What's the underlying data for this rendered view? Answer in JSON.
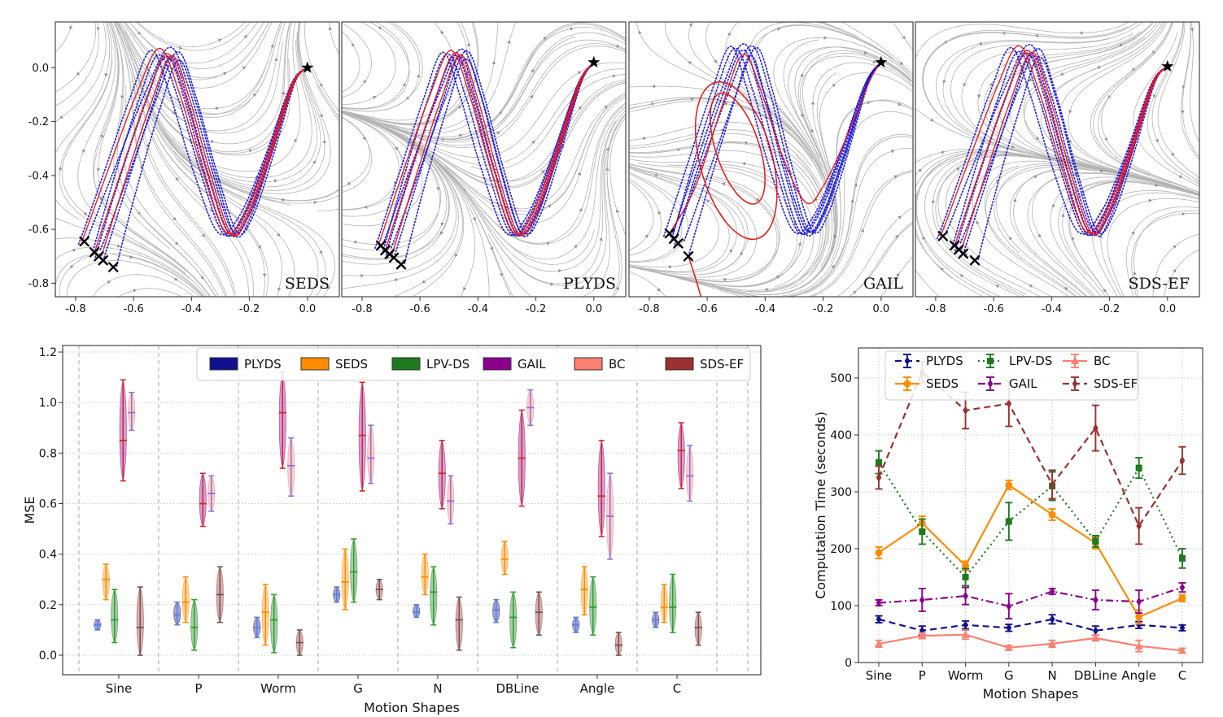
{
  "stream_row": {
    "x_tick_labels": [
      "-0.8",
      "-0.6",
      "-0.4",
      "-0.2",
      "0.0"
    ],
    "y_tick_labels": [
      "0.0",
      "-0.2",
      "-0.4",
      "-0.6",
      "-0.8"
    ],
    "x_tick_values": [
      -0.8,
      -0.6,
      -0.4,
      -0.2,
      0.0
    ],
    "y_tick_values": [
      0.0,
      -0.2,
      -0.4,
      -0.6,
      -0.8
    ],
    "demonstration_color": "#1313dc",
    "reproduction_color": "#ea1515",
    "streamline_color": "#b3b3b3",
    "marker_color": "#000000",
    "panels": [
      {
        "label": "SEDS",
        "target": [
          0.0,
          0.0
        ],
        "show_y_ticks": true,
        "has_loop": false,
        "starts": [
          [
            -0.77,
            -0.645
          ],
          [
            -0.735,
            -0.685
          ],
          [
            -0.72,
            -0.7
          ],
          [
            -0.705,
            -0.715
          ],
          [
            -0.67,
            -0.74
          ]
        ]
      },
      {
        "label": "PLYDS",
        "target": [
          0.0,
          0.02
        ],
        "show_y_ticks": false,
        "has_loop": false,
        "starts": [
          [
            -0.735,
            -0.66
          ],
          [
            -0.72,
            -0.678
          ],
          [
            -0.705,
            -0.692
          ],
          [
            -0.69,
            -0.705
          ],
          [
            -0.665,
            -0.73
          ]
        ]
      },
      {
        "label": "GAIL",
        "target": [
          0.0,
          0.02
        ],
        "show_y_ticks": false,
        "has_loop": true,
        "starts": [
          [
            -0.73,
            -0.615
          ],
          [
            -0.715,
            -0.635
          ],
          [
            -0.7,
            -0.652
          ],
          [
            -0.665,
            -0.7
          ]
        ]
      },
      {
        "label": "SDS-EF",
        "target": [
          0.0,
          0.005
        ],
        "show_y_ticks": false,
        "has_loop": false,
        "starts": [
          [
            -0.775,
            -0.625
          ],
          [
            -0.735,
            -0.66
          ],
          [
            -0.72,
            -0.675
          ],
          [
            -0.705,
            -0.69
          ],
          [
            -0.665,
            -0.715
          ]
        ]
      }
    ]
  },
  "chart_data": [
    {
      "id": "mse-violin",
      "type": "violin",
      "title": "",
      "xlabel": "Motion Shapes",
      "ylabel": "MSE",
      "categories": [
        "Sine",
        "P",
        "Worm",
        "G",
        "N",
        "DBLine",
        "Angle",
        "C"
      ],
      "yticks": [
        0.0,
        0.2,
        0.4,
        0.6,
        0.8,
        1.0,
        1.2
      ],
      "ylim": [
        -0.08,
        1.23
      ],
      "grid": true,
      "legend_position": "top",
      "series": [
        {
          "name": "PLYDS",
          "color": "#10108f",
          "whisker_color": "#5c7fd6",
          "violins": [
            [
              0.1,
              0.12,
              0.14
            ],
            [
              0.12,
              0.16,
              0.21
            ],
            [
              0.07,
              0.11,
              0.15
            ],
            [
              0.21,
              0.24,
              0.27
            ],
            [
              0.15,
              0.17,
              0.2
            ],
            [
              0.13,
              0.18,
              0.22
            ],
            [
              0.09,
              0.12,
              0.15
            ],
            [
              0.11,
              0.14,
              0.17
            ]
          ]
        },
        {
          "name": "SEDS",
          "color": "#ff8c00",
          "whisker_color": "#ff8c00",
          "violins": [
            [
              0.22,
              0.3,
              0.36
            ],
            [
              0.13,
              0.21,
              0.31
            ],
            [
              0.04,
              0.17,
              0.28
            ],
            [
              0.18,
              0.29,
              0.42
            ],
            [
              0.24,
              0.31,
              0.4
            ],
            [
              0.32,
              0.38,
              0.45
            ],
            [
              0.16,
              0.26,
              0.35
            ],
            [
              0.13,
              0.19,
              0.28
            ]
          ]
        },
        {
          "name": "LPV-DS",
          "color": "#1f7a1f",
          "whisker_color": "#2ca02c",
          "violins": [
            [
              0.05,
              0.14,
              0.26
            ],
            [
              0.02,
              0.11,
              0.22
            ],
            [
              0.01,
              0.14,
              0.24
            ],
            [
              0.21,
              0.33,
              0.46
            ],
            [
              0.12,
              0.25,
              0.35
            ],
            [
              0.03,
              0.15,
              0.25
            ],
            [
              0.08,
              0.19,
              0.31
            ],
            [
              0.09,
              0.19,
              0.32
            ]
          ]
        },
        {
          "name": "GAIL",
          "color": "#8b008b",
          "whisker_color": "#d62728",
          "violins": [
            [
              0.69,
              0.85,
              1.09
            ],
            [
              0.51,
              0.6,
              0.72
            ],
            [
              0.74,
              0.96,
              1.12
            ],
            [
              0.65,
              0.87,
              1.08
            ],
            [
              0.58,
              0.72,
              0.85
            ],
            [
              0.59,
              0.78,
              0.97
            ],
            [
              0.47,
              0.63,
              0.85
            ],
            [
              0.66,
              0.81,
              0.92
            ]
          ]
        },
        {
          "name": "BC",
          "color": "#fa8072",
          "whisker_color": "#8f6fd8",
          "violins": [
            [
              0.89,
              0.96,
              1.04
            ],
            [
              0.57,
              0.64,
              0.71
            ],
            [
              0.63,
              0.75,
              0.86
            ],
            [
              0.68,
              0.78,
              0.91
            ],
            [
              0.52,
              0.61,
              0.71
            ],
            [
              0.91,
              0.98,
              1.05
            ],
            [
              0.38,
              0.55,
              0.72
            ],
            [
              0.61,
              0.71,
              0.83
            ]
          ]
        },
        {
          "name": "SDS-EF",
          "color": "#9c2f2f",
          "whisker_color": "#6e5454",
          "violins": [
            [
              0.0,
              0.11,
              0.27
            ],
            [
              0.13,
              0.24,
              0.35
            ],
            [
              0.0,
              0.05,
              0.1
            ],
            [
              0.22,
              0.26,
              0.3
            ],
            [
              0.02,
              0.14,
              0.23
            ],
            [
              0.08,
              0.17,
              0.25
            ],
            [
              0.0,
              0.04,
              0.09
            ],
            [
              0.04,
              0.11,
              0.17
            ]
          ]
        }
      ]
    },
    {
      "id": "computation-time",
      "type": "line",
      "title": "",
      "xlabel": "Motion Shapes",
      "ylabel": "Computation Time (seconds)",
      "categories": [
        "Sine",
        "P",
        "Worm",
        "G",
        "N",
        "DBLine",
        "Angle",
        "C"
      ],
      "yticks": [
        0,
        100,
        200,
        300,
        400,
        500
      ],
      "ylim": [
        0,
        553
      ],
      "grid": true,
      "legend": {
        "rows": 2,
        "columns": 3
      },
      "series": [
        {
          "name": "PLYDS",
          "color": "#10108f",
          "linestyle": "dashed",
          "marker": "thin-diamond",
          "values": [
            76,
            56,
            66,
            61,
            76,
            56,
            66,
            61
          ],
          "errors": [
            6,
            8,
            7,
            6,
            8,
            8,
            6,
            5
          ]
        },
        {
          "name": "SEDS",
          "color": "#ff8c00",
          "linestyle": "solid",
          "marker": "circle",
          "values": [
            193,
            245,
            170,
            312,
            260,
            210,
            80,
            113
          ],
          "errors": [
            10,
            12,
            8,
            8,
            10,
            10,
            12,
            6
          ]
        },
        {
          "name": "LPV-DS",
          "color": "#1f7a1f",
          "linestyle": "dotted",
          "marker": "square",
          "values": [
            352,
            230,
            150,
            248,
            310,
            213,
            342,
            183
          ],
          "errors": [
            20,
            22,
            15,
            33,
            25,
            10,
            18,
            17
          ]
        },
        {
          "name": "GAIL",
          "color": "#8b008b",
          "linestyle": "dashdot",
          "marker": "thin-diamond",
          "values": [
            105,
            110,
            117,
            99,
            125,
            110,
            107,
            132
          ],
          "errors": [
            5,
            20,
            15,
            22,
            5,
            17,
            20,
            8
          ]
        },
        {
          "name": "BC",
          "color": "#fa8072",
          "linestyle": "solid",
          "marker": "triangle",
          "values": [
            33,
            47,
            49,
            26,
            33,
            43,
            29,
            21
          ],
          "errors": [
            6,
            5,
            8,
            4,
            6,
            5,
            10,
            4
          ]
        },
        {
          "name": "SDS-EF",
          "color": "#9c2f2f",
          "linestyle": "dashed",
          "marker": "thin-diamond",
          "values": [
            325,
            510,
            443,
            455,
            313,
            412,
            240,
            355
          ],
          "errors": [
            20,
            18,
            32,
            40,
            25,
            40,
            32,
            24
          ]
        }
      ]
    }
  ]
}
